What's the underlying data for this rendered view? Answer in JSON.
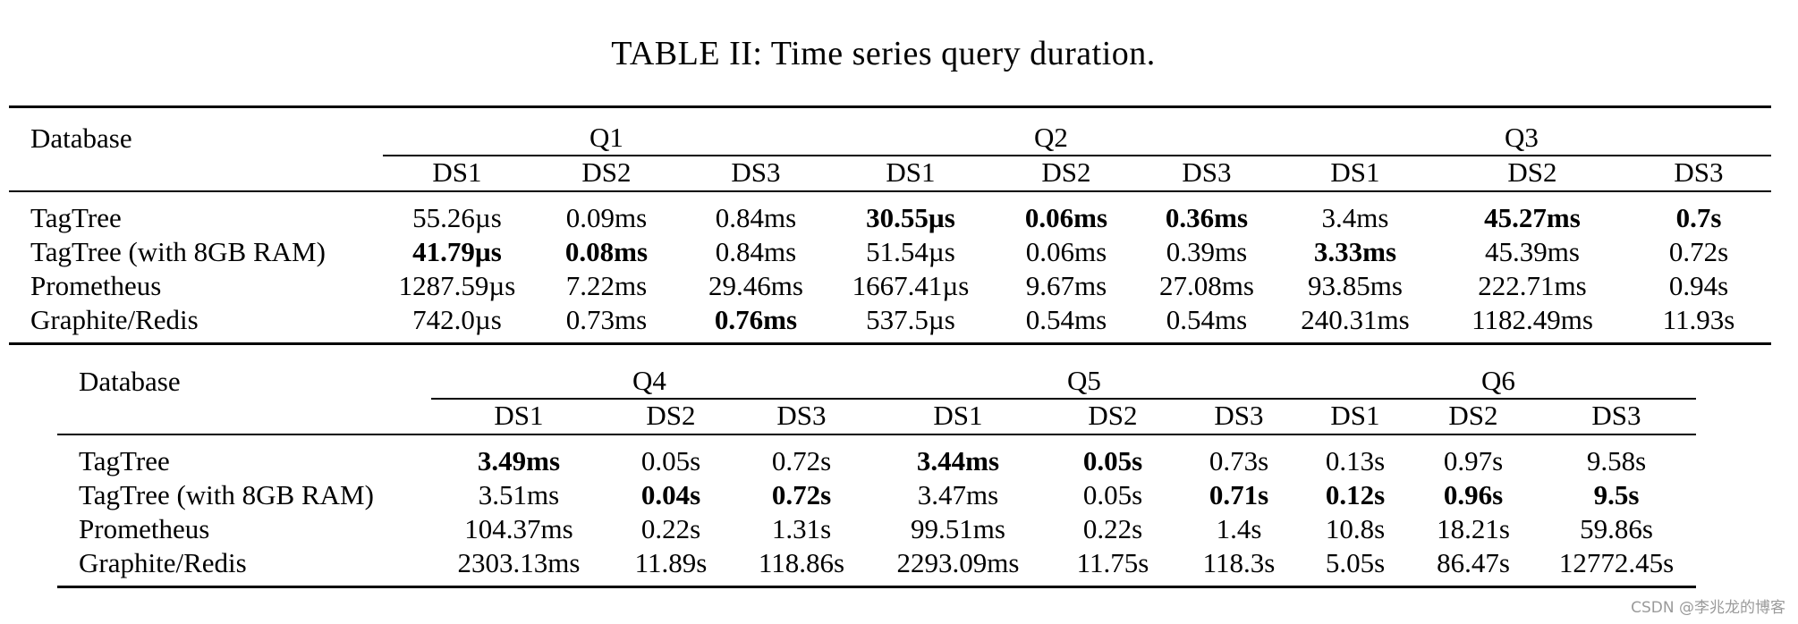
{
  "caption": "TABLE II: Time series query duration.",
  "watermark": "CSDN @李兆龙的博客",
  "tables": [
    {
      "header_label": "Database",
      "groups": [
        "Q1",
        "Q2",
        "Q3"
      ],
      "subheaders": [
        "DS1",
        "DS2",
        "DS3",
        "DS1",
        "DS2",
        "DS3",
        "DS1",
        "DS2",
        "DS3"
      ],
      "rows": [
        {
          "db": "TagTree",
          "values": [
            "55.26µs",
            "0.09ms",
            "0.84ms",
            "30.55µs",
            "0.06ms",
            "0.36ms",
            "3.4ms",
            "45.27ms",
            "0.7s"
          ],
          "bold": [
            false,
            false,
            false,
            true,
            true,
            true,
            false,
            true,
            true
          ]
        },
        {
          "db": "TagTree (with 8GB RAM)",
          "values": [
            "41.79µs",
            "0.08ms",
            "0.84ms",
            "51.54µs",
            "0.06ms",
            "0.39ms",
            "3.33ms",
            "45.39ms",
            "0.72s"
          ],
          "bold": [
            true,
            true,
            false,
            false,
            false,
            false,
            true,
            false,
            false
          ]
        },
        {
          "db": "Prometheus",
          "values": [
            "1287.59µs",
            "7.22ms",
            "29.46ms",
            "1667.41µs",
            "9.67ms",
            "27.08ms",
            "93.85ms",
            "222.71ms",
            "0.94s"
          ],
          "bold": [
            false,
            false,
            false,
            false,
            false,
            false,
            false,
            false,
            false
          ]
        },
        {
          "db": "Graphite/Redis",
          "values": [
            "742.0µs",
            "0.73ms",
            "0.76ms",
            "537.5µs",
            "0.54ms",
            "0.54ms",
            "240.31ms",
            "1182.49ms",
            "11.93s"
          ],
          "bold": [
            false,
            false,
            true,
            false,
            false,
            false,
            false,
            false,
            false
          ]
        }
      ]
    },
    {
      "header_label": "Database",
      "groups": [
        "Q4",
        "Q5",
        "Q6"
      ],
      "subheaders": [
        "DS1",
        "DS2",
        "DS3",
        "DS1",
        "DS2",
        "DS3",
        "DS1",
        "DS2",
        "DS3"
      ],
      "rows": [
        {
          "db": "TagTree",
          "values": [
            "3.49ms",
            "0.05s",
            "0.72s",
            "3.44ms",
            "0.05s",
            "0.73s",
            "0.13s",
            "0.97s",
            "9.58s"
          ],
          "bold": [
            true,
            false,
            false,
            true,
            true,
            false,
            false,
            false,
            false
          ]
        },
        {
          "db": "TagTree (with 8GB RAM)",
          "values": [
            "3.51ms",
            "0.04s",
            "0.72s",
            "3.47ms",
            "0.05s",
            "0.71s",
            "0.12s",
            "0.96s",
            "9.5s"
          ],
          "bold": [
            false,
            true,
            true,
            false,
            false,
            true,
            true,
            true,
            true
          ]
        },
        {
          "db": "Prometheus",
          "values": [
            "104.37ms",
            "0.22s",
            "1.31s",
            "99.51ms",
            "0.22s",
            "1.4s",
            "10.8s",
            "18.21s",
            "59.86s"
          ],
          "bold": [
            false,
            false,
            false,
            false,
            false,
            false,
            false,
            false,
            false
          ]
        },
        {
          "db": "Graphite/Redis",
          "values": [
            "2303.13ms",
            "11.89s",
            "118.86s",
            "2293.09ms",
            "11.75s",
            "118.3s",
            "5.05s",
            "86.47s",
            "12772.45s"
          ],
          "bold": [
            false,
            false,
            false,
            false,
            false,
            false,
            false,
            false,
            false
          ]
        }
      ]
    }
  ]
}
